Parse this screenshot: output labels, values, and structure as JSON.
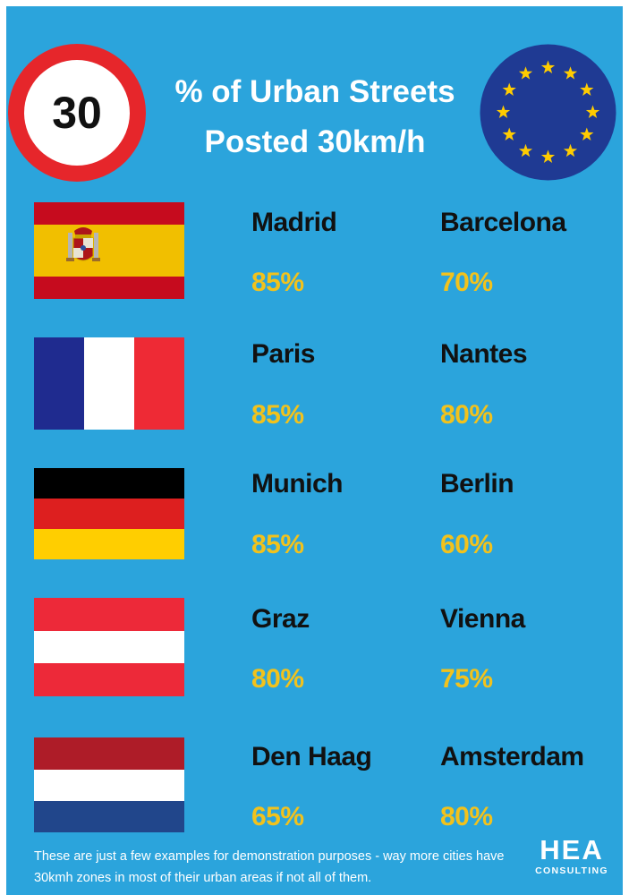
{
  "sign": {
    "number": "30"
  },
  "title": {
    "line1": "% of Urban Streets",
    "line2": "Posted 30km/h"
  },
  "rows": [
    {
      "flag": "spain-flag",
      "cities": [
        {
          "name": "Madrid",
          "pct": "85%"
        },
        {
          "name": "Barcelona",
          "pct": "70%"
        }
      ]
    },
    {
      "flag": "france-flag",
      "cities": [
        {
          "name": "Paris",
          "pct": "85%"
        },
        {
          "name": "Nantes",
          "pct": "80%"
        }
      ]
    },
    {
      "flag": "germany-flag",
      "cities": [
        {
          "name": "Munich",
          "pct": "85%"
        },
        {
          "name": "Berlin",
          "pct": "60%"
        }
      ]
    },
    {
      "flag": "austria-flag",
      "cities": [
        {
          "name": "Graz",
          "pct": "80%"
        },
        {
          "name": "Vienna",
          "pct": "75%"
        }
      ]
    },
    {
      "flag": "netherlands-flag",
      "cities": [
        {
          "name": "Den Haag",
          "pct": "65%"
        },
        {
          "name": "Amsterdam",
          "pct": "80%"
        }
      ]
    }
  ],
  "footnote": "These are just a few examples for demonstration purposes - way more cities have 30kmh zones in most of their urban areas if not all of them.",
  "logo": {
    "mark": "HEA",
    "sub": "CONSULTING"
  },
  "colors": {
    "background": "#2ba4dc",
    "percent": "#f2c21c",
    "sign_red": "#e6262b",
    "eu_blue": "#1f3a93",
    "eu_star": "#ffcc00"
  }
}
